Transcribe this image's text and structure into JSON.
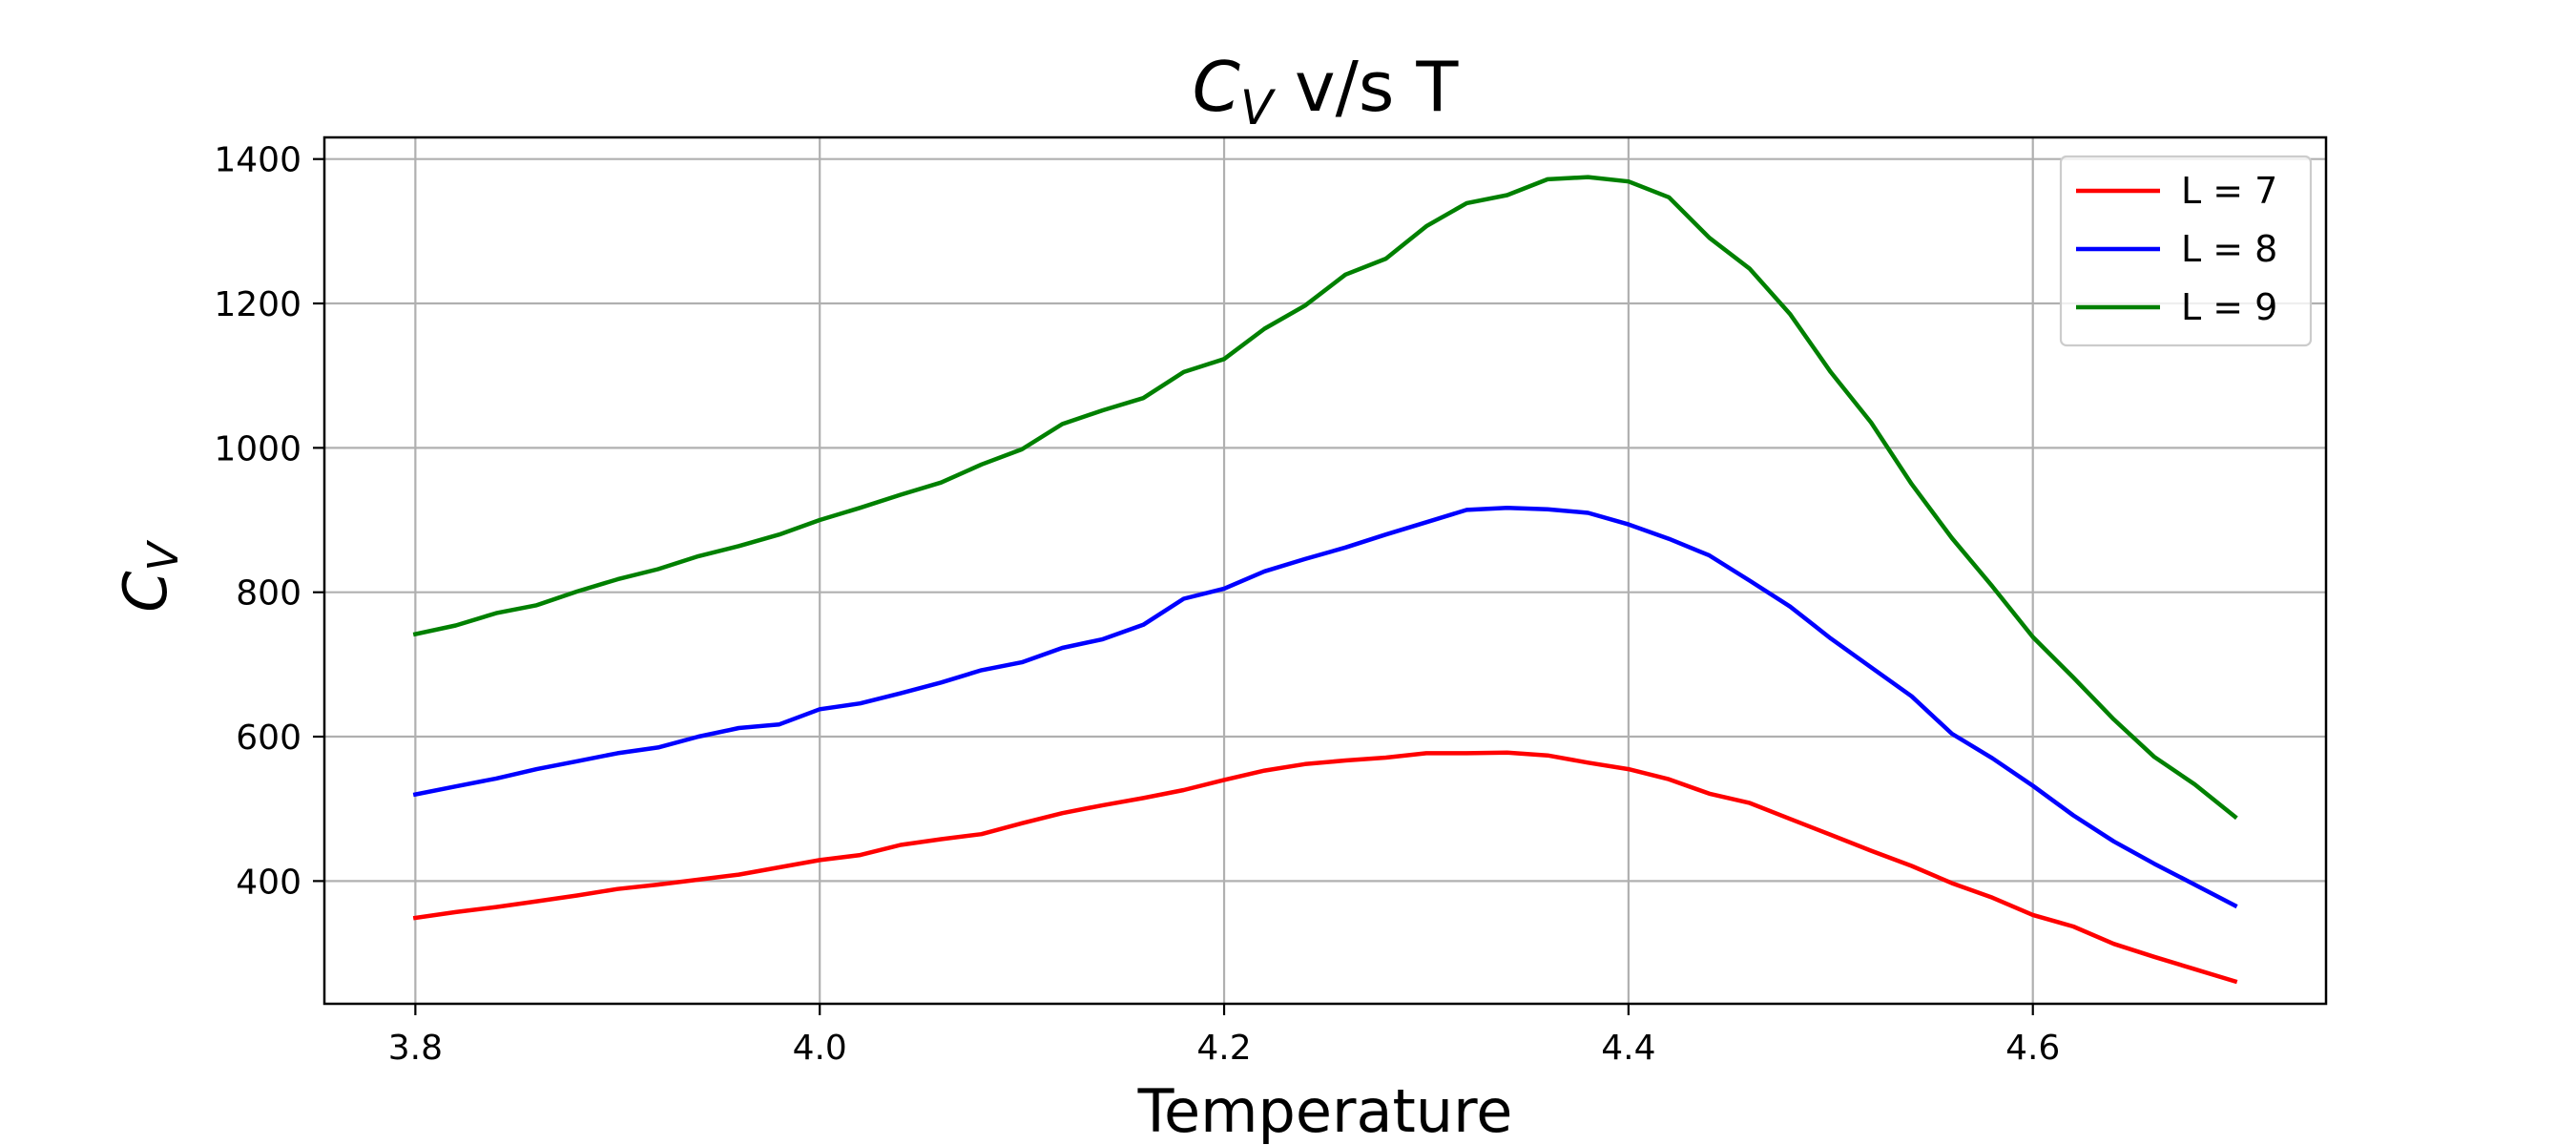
{
  "chart_data": {
    "type": "line",
    "title": {
      "symbol": "C",
      "subscript": "V",
      "rest": " v/s T"
    },
    "xlabel": "Temperature",
    "ylabel": {
      "symbol": "C",
      "subscript": "V"
    },
    "xlim": [
      3.755,
      4.745
    ],
    "ylim": [
      230,
      1430
    ],
    "x_ticks": [
      {
        "value": 3.8,
        "label": "3.8"
      },
      {
        "value": 4.0,
        "label": "4.0"
      },
      {
        "value": 4.2,
        "label": "4.2"
      },
      {
        "value": 4.4,
        "label": "4.4"
      },
      {
        "value": 4.6,
        "label": "4.6"
      }
    ],
    "y_ticks": [
      {
        "value": 400,
        "label": "400"
      },
      {
        "value": 600,
        "label": "600"
      },
      {
        "value": 800,
        "label": "800"
      },
      {
        "value": 1000,
        "label": "1000"
      },
      {
        "value": 1200,
        "label": "1200"
      },
      {
        "value": 1400,
        "label": "1400"
      }
    ],
    "grid": true,
    "legend_position": "top-right",
    "x": [
      3.8,
      3.82,
      3.84,
      3.86,
      3.88,
      3.9,
      3.92,
      3.94,
      3.96,
      3.98,
      4.0,
      4.02,
      4.04,
      4.06,
      4.08,
      4.1,
      4.12,
      4.14,
      4.16,
      4.18,
      4.2,
      4.22,
      4.24,
      4.26,
      4.28,
      4.3,
      4.32,
      4.34,
      4.36,
      4.38,
      4.4,
      4.42,
      4.44,
      4.46,
      4.48,
      4.5,
      4.52,
      4.54,
      4.56,
      4.58,
      4.6,
      4.62,
      4.64,
      4.66,
      4.68,
      4.7
    ],
    "series": [
      {
        "name": "L = 7",
        "color": "#ff0000",
        "values": [
          349,
          357,
          364,
          372,
          380,
          389,
          395,
          402,
          409,
          419,
          429,
          436,
          450,
          458,
          465,
          480,
          494,
          505,
          515,
          526,
          540,
          553,
          562,
          567,
          571,
          577,
          577,
          578,
          574,
          564,
          555,
          541,
          521,
          508,
          486,
          464,
          442,
          421,
          397,
          377,
          353,
          337,
          313,
          295,
          278,
          261
        ]
      },
      {
        "name": "L = 8",
        "color": "#0000ff",
        "values": [
          520,
          531,
          542,
          555,
          566,
          577,
          585,
          600,
          612,
          617,
          638,
          646,
          660,
          675,
          692,
          703,
          723,
          735,
          755,
          791,
          805,
          829,
          846,
          862,
          880,
          897,
          914,
          917,
          915,
          910,
          894,
          874,
          851,
          816,
          780,
          736,
          696,
          656,
          604,
          570,
          532,
          491,
          455,
          424,
          395,
          366
        ]
      },
      {
        "name": "L = 9",
        "color": "#008000",
        "values": [
          742,
          754,
          771,
          782,
          801,
          818,
          832,
          850,
          864,
          880,
          900,
          917,
          935,
          952,
          977,
          998,
          1033,
          1052,
          1069,
          1105,
          1123,
          1165,
          1197,
          1240,
          1262,
          1307,
          1339,
          1350,
          1372,
          1375,
          1369,
          1347,
          1291,
          1248,
          1185,
          1105,
          1035,
          950,
          875,
          808,
          738,
          682,
          624,
          572,
          534,
          489
        ]
      }
    ]
  }
}
